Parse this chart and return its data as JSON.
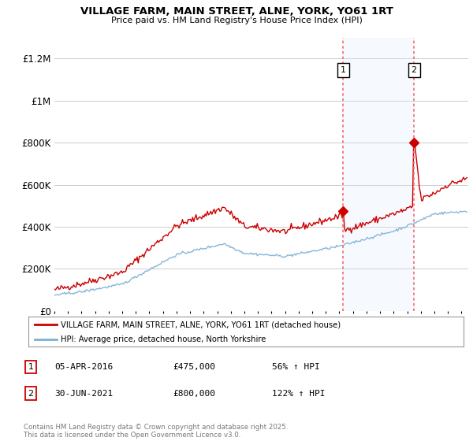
{
  "title": "VILLAGE FARM, MAIN STREET, ALNE, YORK, YO61 1RT",
  "subtitle": "Price paid vs. HM Land Registry's House Price Index (HPI)",
  "ylabel_ticks": [
    "£0",
    "£200K",
    "£400K",
    "£600K",
    "£800K",
    "£1M",
    "£1.2M"
  ],
  "ytick_values": [
    0,
    200000,
    400000,
    600000,
    800000,
    1000000,
    1200000
  ],
  "ylim": [
    0,
    1300000
  ],
  "xlim_start": 1995.0,
  "xlim_end": 2025.5,
  "red_line_label": "VILLAGE FARM, MAIN STREET, ALNE, YORK, YO61 1RT (detached house)",
  "blue_line_label": "HPI: Average price, detached house, North Yorkshire",
  "sale1_date": "05-APR-2016",
  "sale1_price": 475000,
  "sale1_pct": "56%",
  "sale2_date": "30-JUN-2021",
  "sale2_price": 800000,
  "sale2_pct": "122%",
  "footer": "Contains HM Land Registry data © Crown copyright and database right 2025.\nThis data is licensed under the Open Government Licence v3.0.",
  "red_color": "#cc0000",
  "blue_color": "#7aafd4",
  "shade_color": "#ddeeff",
  "vline_color": "#ff6666",
  "marker_color": "#cc0000",
  "background_color": "#ffffff",
  "grid_color": "#cccccc",
  "sale1_x": 2016.27,
  "sale2_x": 2021.5
}
